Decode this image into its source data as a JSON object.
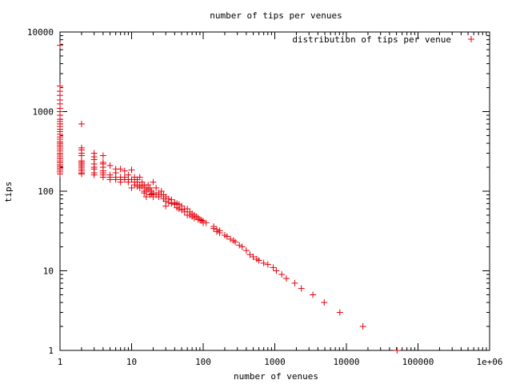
{
  "chart_data": {
    "type": "scatter",
    "title": "number of tips per venues",
    "xlabel": "number of venues",
    "ylabel": "tips",
    "x_scale": "log",
    "y_scale": "log",
    "xlim": [
      1,
      1000000
    ],
    "ylim": [
      1,
      10000
    ],
    "x_ticks": [
      "1",
      "10",
      "100",
      "1000",
      "10000",
      "100000",
      "1e+06"
    ],
    "y_ticks": [
      "1",
      "10",
      "100",
      "1000",
      "10000"
    ],
    "grid": false,
    "legend_position": "top-right",
    "colors": {
      "series": "#e8000b",
      "axis": "#000000",
      "background": "#ffffff"
    },
    "series": [
      {
        "name": "distribution of tips per venue",
        "marker": "plus",
        "points": [
          [
            1,
            6800
          ],
          [
            1,
            2100
          ],
          [
            1,
            1800
          ],
          [
            1,
            1600
          ],
          [
            1,
            1400
          ],
          [
            1,
            1250
          ],
          [
            1,
            1100
          ],
          [
            1,
            1000
          ],
          [
            1,
            900
          ],
          [
            1,
            800
          ],
          [
            1,
            750
          ],
          [
            1,
            700
          ],
          [
            1,
            650
          ],
          [
            1,
            600
          ],
          [
            1,
            560
          ],
          [
            1,
            520
          ],
          [
            1,
            480
          ],
          [
            1,
            450
          ],
          [
            1,
            420
          ],
          [
            1,
            400
          ],
          [
            1,
            380
          ],
          [
            1,
            360
          ],
          [
            1,
            340
          ],
          [
            1,
            320
          ],
          [
            1,
            300
          ],
          [
            1,
            285
          ],
          [
            1,
            270
          ],
          [
            1,
            255
          ],
          [
            1,
            240
          ],
          [
            1,
            228
          ],
          [
            1,
            215
          ],
          [
            1,
            205
          ],
          [
            1,
            195
          ],
          [
            1,
            185
          ],
          [
            1,
            175
          ],
          [
            1,
            165
          ],
          [
            2,
            700
          ],
          [
            2,
            350
          ],
          [
            2,
            330
          ],
          [
            2,
            300
          ],
          [
            2,
            280
          ],
          [
            2,
            240
          ],
          [
            2,
            230
          ],
          [
            2,
            220
          ],
          [
            2,
            210
          ],
          [
            2,
            200
          ],
          [
            2,
            190
          ],
          [
            2,
            180
          ],
          [
            2,
            170
          ],
          [
            2,
            165
          ],
          [
            3,
            300
          ],
          [
            3,
            270
          ],
          [
            3,
            250
          ],
          [
            3,
            220
          ],
          [
            3,
            200
          ],
          [
            3,
            190
          ],
          [
            3,
            170
          ],
          [
            3,
            160
          ],
          [
            4,
            280
          ],
          [
            4,
            230
          ],
          [
            4,
            220
          ],
          [
            4,
            200
          ],
          [
            4,
            180
          ],
          [
            4,
            170
          ],
          [
            4,
            160
          ],
          [
            4,
            150
          ],
          [
            5,
            210
          ],
          [
            5,
            160
          ],
          [
            5,
            150
          ],
          [
            5,
            140
          ],
          [
            6,
            190
          ],
          [
            6,
            170
          ],
          [
            6,
            150
          ],
          [
            6,
            140
          ],
          [
            7,
            190
          ],
          [
            7,
            150
          ],
          [
            7,
            140
          ],
          [
            7,
            130
          ],
          [
            8,
            180
          ],
          [
            8,
            150
          ],
          [
            8,
            140
          ],
          [
            9,
            160
          ],
          [
            9,
            140
          ],
          [
            9,
            130
          ],
          [
            10,
            185
          ],
          [
            10,
            140
          ],
          [
            10,
            110
          ],
          [
            11,
            150
          ],
          [
            11,
            130
          ],
          [
            11,
            120
          ],
          [
            12,
            140
          ],
          [
            12,
            130
          ],
          [
            12,
            115
          ],
          [
            13,
            150
          ],
          [
            13,
            120
          ],
          [
            13,
            110
          ],
          [
            14,
            130
          ],
          [
            14,
            115
          ],
          [
            15,
            120
          ],
          [
            15,
            100
          ],
          [
            15,
            95
          ],
          [
            16,
            110
          ],
          [
            16,
            100
          ],
          [
            16,
            85
          ],
          [
            17,
            120
          ],
          [
            17,
            105
          ],
          [
            18,
            110
          ],
          [
            18,
            90
          ],
          [
            19,
            100
          ],
          [
            19,
            92
          ],
          [
            20,
            130
          ],
          [
            20,
            95
          ],
          [
            20,
            85
          ],
          [
            22,
            110
          ],
          [
            22,
            90
          ],
          [
            24,
            95
          ],
          [
            24,
            85
          ],
          [
            26,
            100
          ],
          [
            26,
            90
          ],
          [
            28,
            90
          ],
          [
            28,
            80
          ],
          [
            30,
            85
          ],
          [
            30,
            75
          ],
          [
            30,
            65
          ],
          [
            33,
            80
          ],
          [
            33,
            72
          ],
          [
            36,
            78
          ],
          [
            36,
            70
          ],
          [
            40,
            72
          ],
          [
            40,
            68
          ],
          [
            43,
            70
          ],
          [
            43,
            62
          ],
          [
            46,
            68
          ],
          [
            46,
            60
          ],
          [
            50,
            65
          ],
          [
            50,
            58
          ],
          [
            55,
            60
          ],
          [
            55,
            55
          ],
          [
            60,
            60
          ],
          [
            60,
            50
          ],
          [
            65,
            55
          ],
          [
            65,
            50
          ],
          [
            70,
            52
          ],
          [
            70,
            48
          ],
          [
            75,
            50
          ],
          [
            75,
            46
          ],
          [
            80,
            48
          ],
          [
            85,
            46
          ],
          [
            85,
            44
          ],
          [
            90,
            44
          ],
          [
            95,
            43
          ],
          [
            100,
            42
          ],
          [
            100,
            40
          ],
          [
            110,
            40
          ],
          [
            140,
            36
          ],
          [
            140,
            34
          ],
          [
            155,
            33
          ],
          [
            155,
            31
          ],
          [
            170,
            32
          ],
          [
            170,
            30
          ],
          [
            200,
            28
          ],
          [
            215,
            27
          ],
          [
            240,
            25
          ],
          [
            265,
            24
          ],
          [
            280,
            23
          ],
          [
            320,
            21
          ],
          [
            350,
            20
          ],
          [
            400,
            18
          ],
          [
            450,
            16
          ],
          [
            500,
            15
          ],
          [
            560,
            14
          ],
          [
            600,
            13.5
          ],
          [
            700,
            12.5
          ],
          [
            800,
            12
          ],
          [
            950,
            11
          ],
          [
            1050,
            10
          ],
          [
            1250,
            9
          ],
          [
            1450,
            8
          ],
          [
            1900,
            7
          ],
          [
            2350,
            6
          ],
          [
            3400,
            5
          ],
          [
            4900,
            4
          ],
          [
            8100,
            3
          ],
          [
            17000,
            2
          ],
          [
            51000,
            1
          ]
        ]
      }
    ]
  }
}
